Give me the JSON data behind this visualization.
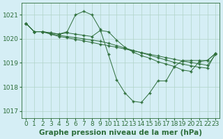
{
  "background_color": "#d5eef5",
  "grid_color": "#b0d4c8",
  "line_color": "#2d6e3a",
  "marker_color": "#2d6e3a",
  "xlabel": "Graphe pression niveau de la mer (hPa)",
  "xlabel_fontsize": 7.5,
  "tick_fontsize": 6.5,
  "xlim": [
    -0.5,
    23.5
  ],
  "ylim": [
    1016.7,
    1021.5
  ],
  "yticks": [
    1017,
    1018,
    1019,
    1020,
    1021
  ],
  "xticks": [
    0,
    1,
    2,
    3,
    4,
    5,
    6,
    7,
    8,
    9,
    10,
    11,
    12,
    13,
    14,
    15,
    16,
    17,
    18,
    19,
    20,
    21,
    22,
    23
  ],
  "lines": [
    {
      "x": [
        0,
        1,
        2,
        3,
        4,
        5,
        6,
        7,
        8,
        9,
        10,
        11,
        12,
        13,
        14,
        15,
        16,
        17,
        18,
        19,
        20,
        21,
        22,
        23
      ],
      "y": [
        1020.65,
        1020.3,
        1020.3,
        1020.25,
        1020.2,
        1020.3,
        1021.0,
        1021.15,
        1021.0,
        1020.4,
        1019.35,
        1018.3,
        1017.75,
        1017.4,
        1017.35,
        1017.75,
        1018.25,
        1018.25,
        1018.85,
        1019.1,
        1019.1,
        1019.1,
        1019.1,
        1019.4
      ]
    },
    {
      "x": [
        0,
        1,
        2,
        3,
        4,
        5,
        6,
        7,
        8,
        9,
        10,
        11,
        12,
        13,
        14,
        15,
        16,
        17,
        18,
        19,
        20,
        21,
        22,
        23
      ],
      "y": [
        1020.65,
        1020.3,
        1020.3,
        1020.25,
        1020.2,
        1020.25,
        1020.2,
        1020.15,
        1020.1,
        1020.35,
        1020.3,
        1019.95,
        1019.65,
        1019.45,
        1019.3,
        1019.2,
        1019.05,
        1018.95,
        1018.85,
        1018.7,
        1018.65,
        1019.05,
        1019.1,
        1019.4
      ]
    },
    {
      "x": [
        0,
        1,
        2,
        3,
        4,
        5,
        6,
        7,
        8,
        9,
        10,
        11,
        12,
        13,
        14,
        15,
        16,
        17,
        18,
        19,
        20,
        21,
        22,
        23
      ],
      "y": [
        1020.65,
        1020.3,
        1020.3,
        1020.2,
        1020.15,
        1020.1,
        1020.05,
        1020.0,
        1019.95,
        1019.9,
        1019.82,
        1019.72,
        1019.62,
        1019.52,
        1019.42,
        1019.32,
        1019.22,
        1019.12,
        1019.02,
        1018.95,
        1018.88,
        1018.82,
        1018.78,
        1019.4
      ]
    },
    {
      "x": [
        0,
        1,
        2,
        3,
        4,
        5,
        6,
        7,
        8,
        9,
        10,
        11,
        12,
        13,
        14,
        15,
        16,
        17,
        18,
        19,
        20,
        21,
        22,
        23
      ],
      "y": [
        1020.65,
        1020.3,
        1020.3,
        1020.2,
        1020.1,
        1020.05,
        1019.98,
        1019.92,
        1019.85,
        1019.78,
        1019.72,
        1019.65,
        1019.58,
        1019.5,
        1019.43,
        1019.36,
        1019.29,
        1019.22,
        1019.15,
        1019.08,
        1019.02,
        1018.96,
        1018.9,
        1019.35
      ]
    }
  ]
}
